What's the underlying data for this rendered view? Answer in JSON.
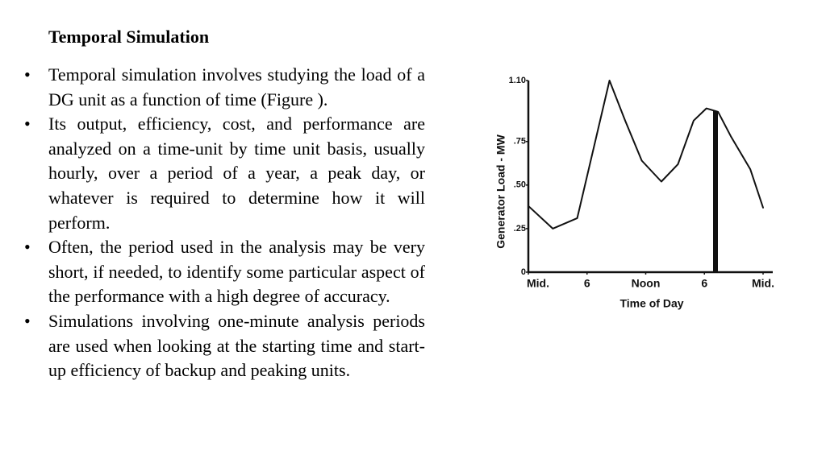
{
  "slide": {
    "title": "Temporal Simulation",
    "bullets": [
      "Temporal simulation involves studying the load of a DG unit as a function of time (Figure ).",
      "Its output, efficiency, cost, and performance are analyzed on a time-unit by time unit basis, usually hourly, over a period of a year, a peak day, or whatever is required to determine how it will perform.",
      "Often, the period used in the analysis may be very short, if needed, to identify some particular aspect of the performance with a high degree of accuracy.",
      "Simulations involving one-minute analysis periods are used when looking at the starting time and start-up efficiency of backup and peaking units."
    ]
  },
  "chart_data": {
    "type": "line",
    "x_label": "Time of Day",
    "y_label": "Generator Load - MW",
    "x": [
      0,
      2.5,
      5,
      8.3,
      9.9,
      11.6,
      13.6,
      15.3,
      16.9,
      18.2,
      19.4,
      20.7,
      22.7,
      24
    ],
    "values": [
      0.38,
      0.25,
      0.31,
      1.1,
      0.87,
      0.64,
      0.52,
      0.62,
      0.87,
      0.94,
      0.92,
      0.78,
      0.59,
      0.37
    ],
    "color": "#111111",
    "xlim": [
      0,
      24
    ],
    "xticks": [
      {
        "value": 0,
        "label": "Mid."
      },
      6,
      {
        "value": 12,
        "label": "Noon"
      },
      {
        "value": 18,
        "label": "6"
      },
      {
        "value": 24,
        "label": "Mid."
      }
    ],
    "ylim": [
      0,
      1.1
    ],
    "yticks": [
      0,
      {
        "value": 0.25,
        "label": ".25"
      },
      {
        "value": 0.5,
        "label": ".50"
      },
      {
        "value": 0.75,
        "label": ".75"
      },
      {
        "value": 1.1,
        "label": "1.10"
      }
    ],
    "grid": false
  }
}
